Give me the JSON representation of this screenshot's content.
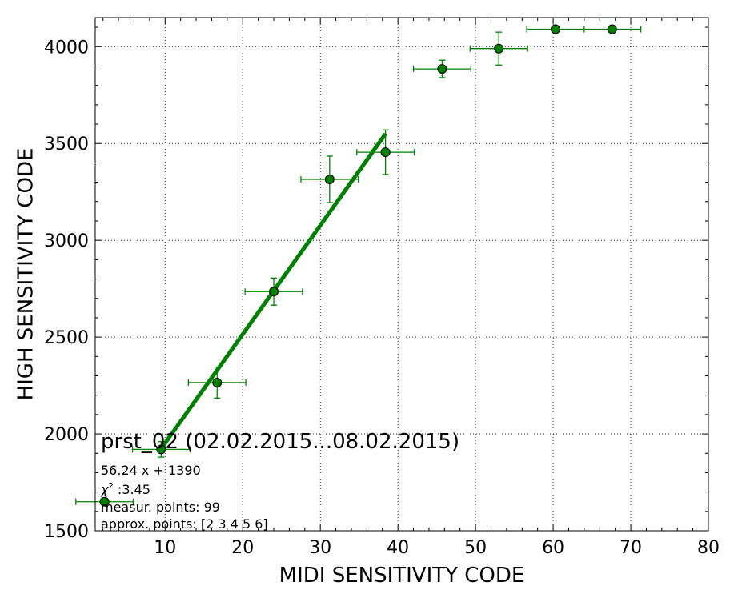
{
  "chart_data": {
    "type": "scatter",
    "xlabel": "MIDI SENSITIVITY CODE",
    "ylabel": "HIGH SENSITIVITY CODE",
    "xlim": [
      1,
      80
    ],
    "ylim": [
      1500,
      4150
    ],
    "x_ticks": [
      10,
      20,
      30,
      40,
      50,
      60,
      70,
      80
    ],
    "y_ticks": [
      1500,
      2000,
      2500,
      3000,
      3500,
      4000
    ],
    "grid": true,
    "grid_style": "dotted",
    "colors": {
      "marker": "#008000",
      "error": "#008000",
      "fit": "#008000",
      "grid": "#000000"
    },
    "series": [
      {
        "x": [
          2.2,
          9.5,
          16.7,
          24.0,
          31.2,
          38.4,
          45.7,
          53.0,
          60.3,
          67.6
        ],
        "y": [
          1650,
          1920,
          2265,
          2735,
          3315,
          3455,
          3885,
          3990,
          4090,
          4090
        ],
        "xerr": [
          3.7,
          3.7,
          3.7,
          3.7,
          3.7,
          3.7,
          3.7,
          3.7,
          3.7,
          3.7
        ],
        "yerr": [
          0,
          40,
          80,
          70,
          120,
          115,
          45,
          85,
          0,
          0
        ]
      }
    ],
    "fit_line": {
      "x": [
        9.5,
        38.4
      ],
      "y": [
        1924,
        3550
      ]
    },
    "annotations": {
      "title": "prst_02 (02.02.2015...08.02.2015)",
      "equation": "56.24 x + 1390",
      "chi_symbol": "χ",
      "chi_sup": "2",
      "chi_value": " :3.45",
      "measur_points": "measur. points: 99",
      "approx_points": "approx. points: [2 3 4 5 6]"
    }
  }
}
